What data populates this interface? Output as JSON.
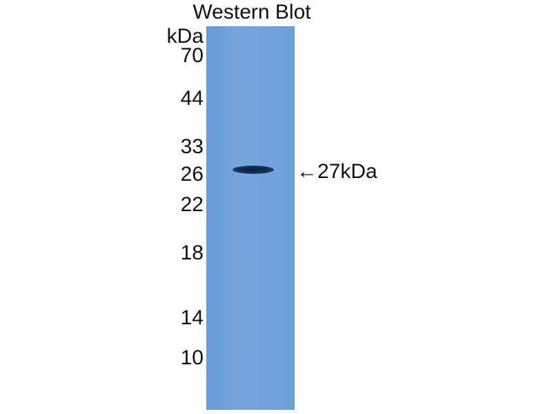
{
  "title": "Western Blot",
  "unit_label": "kDa",
  "markers": [
    "70",
    "44",
    "33",
    "26",
    "22",
    "18",
    "14",
    "10"
  ],
  "band_annotation": "27kDa",
  "arrow_glyph": "←",
  "colors": {
    "membrane": "#73a2dc",
    "band": "#132f58"
  }
}
